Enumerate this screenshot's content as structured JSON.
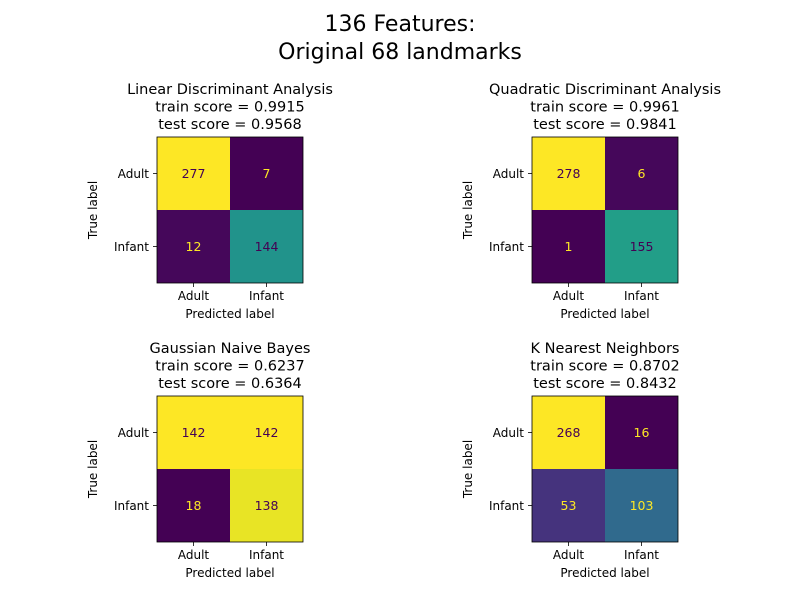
{
  "title_lines": [
    "136 Features:",
    "Original 68 landmarks"
  ],
  "chart_data": [
    {
      "type": "heatmap",
      "title_lines": [
        "Linear Discriminant Analysis",
        "train score = 0.9915",
        "test score = 0.9568"
      ],
      "xlabel": "Predicted label",
      "ylabel": "True label",
      "x_categories": [
        "Adult",
        "Infant"
      ],
      "y_categories": [
        "Adult",
        "Infant"
      ],
      "matrix": [
        [
          277,
          7
        ],
        [
          12,
          144
        ]
      ],
      "colormap": "viridis"
    },
    {
      "type": "heatmap",
      "title_lines": [
        "Quadratic Discriminant Analysis",
        "train score = 0.9961",
        "test score = 0.9841"
      ],
      "xlabel": "Predicted label",
      "ylabel": "True label",
      "x_categories": [
        "Adult",
        "Infant"
      ],
      "y_categories": [
        "Adult",
        "Infant"
      ],
      "matrix": [
        [
          278,
          6
        ],
        [
          1,
          155
        ]
      ],
      "colormap": "viridis"
    },
    {
      "type": "heatmap",
      "title_lines": [
        "Gaussian Naive Bayes",
        "train score = 0.6237",
        "test score = 0.6364"
      ],
      "xlabel": "Predicted label",
      "ylabel": "True label",
      "x_categories": [
        "Adult",
        "Infant"
      ],
      "y_categories": [
        "Adult",
        "Infant"
      ],
      "matrix": [
        [
          142,
          142
        ],
        [
          18,
          138
        ]
      ],
      "colormap": "viridis"
    },
    {
      "type": "heatmap",
      "title_lines": [
        "K Nearest Neighbors",
        "train score = 0.8702",
        "test score = 0.8432"
      ],
      "xlabel": "Predicted label",
      "ylabel": "True label",
      "x_categories": [
        "Adult",
        "Infant"
      ],
      "y_categories": [
        "Adult",
        "Infant"
      ],
      "matrix": [
        [
          268,
          16
        ],
        [
          53,
          103
        ]
      ],
      "colormap": "viridis"
    }
  ]
}
